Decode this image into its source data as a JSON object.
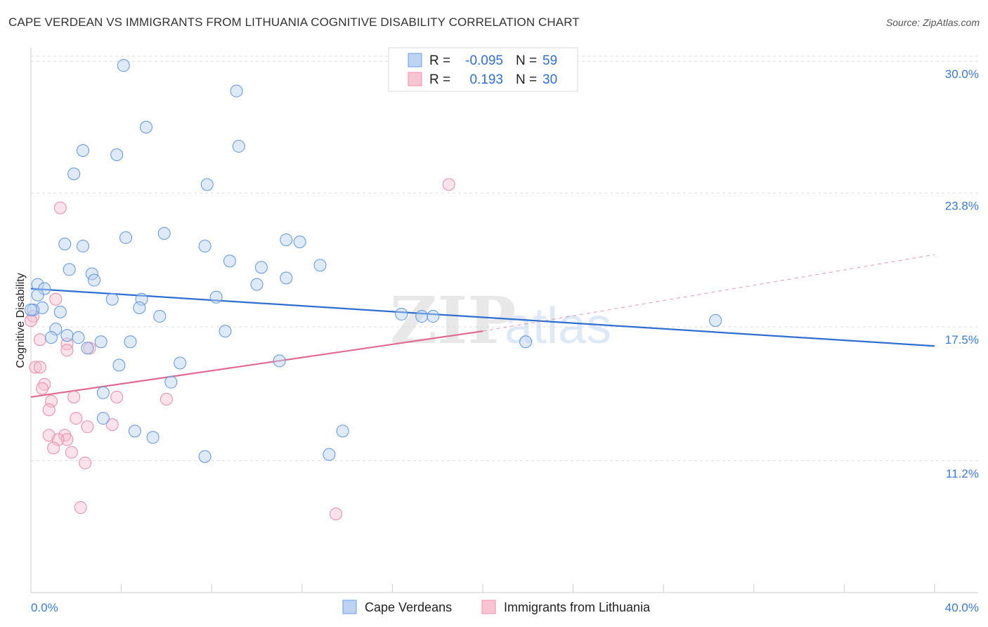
{
  "title": "CAPE VERDEAN VS IMMIGRANTS FROM LITHUANIA COGNITIVE DISABILITY CORRELATION CHART",
  "source": "Source: ZipAtlas.com",
  "watermark": {
    "zip": "ZIP",
    "atlas": "atlas"
  },
  "legend": {
    "rows": [
      {
        "r_label": "R =",
        "r_value": "-0.095",
        "n_label": "N =",
        "n_value": "59"
      },
      {
        "r_label": "R =",
        "r_value": "0.193",
        "n_label": "N =",
        "n_value": "30"
      }
    ]
  },
  "bottom_legend": [
    "Cape Verdeans",
    "Immigrants from Lithuania"
  ],
  "chart_data": {
    "type": "scatter",
    "title": "CAPE VERDEAN VS IMMIGRANTS FROM LITHUANIA COGNITIVE DISABILITY CORRELATION CHART",
    "xlabel": "",
    "ylabel": "Cognitive Disability",
    "xlim": [
      0,
      40
    ],
    "ylim": [
      5.0,
      30.5
    ],
    "x_tick_labels": [
      "0.0%",
      "40.0%"
    ],
    "y_ticks": [
      11.2,
      17.5,
      23.8,
      30.0
    ],
    "y_tick_labels": [
      "11.2%",
      "17.5%",
      "23.8%",
      "30.0%"
    ],
    "grid": true,
    "legend_position": "top-center",
    "colors": {
      "blue": "#6a9ee0",
      "pink": "#ee8fab",
      "blue_line": "#2f6fcf",
      "pink_line": "#e06a90"
    },
    "series": [
      {
        "name": "Cape Verdeans",
        "color": "blue",
        "r": -0.095,
        "n": 59,
        "trend": {
          "x": [
            0,
            40
          ],
          "y": [
            19.3,
            16.6
          ],
          "style": "solid"
        },
        "points": [
          [
            4.1,
            29.8
          ],
          [
            9.1,
            28.6
          ],
          [
            5.1,
            26.9
          ],
          [
            9.2,
            26.0
          ],
          [
            2.3,
            25.8
          ],
          [
            3.8,
            25.6
          ],
          [
            1.9,
            24.7
          ],
          [
            7.8,
            24.2
          ],
          [
            5.9,
            21.9
          ],
          [
            4.2,
            21.7
          ],
          [
            1.5,
            21.4
          ],
          [
            2.3,
            21.3
          ],
          [
            7.7,
            21.3
          ],
          [
            11.3,
            21.6
          ],
          [
            11.9,
            21.5
          ],
          [
            8.8,
            20.6
          ],
          [
            10.2,
            20.3
          ],
          [
            12.8,
            20.4
          ],
          [
            1.7,
            20.2
          ],
          [
            2.7,
            20.0
          ],
          [
            2.8,
            19.7
          ],
          [
            11.3,
            19.8
          ],
          [
            0.3,
            19.5
          ],
          [
            0.6,
            19.3
          ],
          [
            0.3,
            19.0
          ],
          [
            10.0,
            19.5
          ],
          [
            3.6,
            18.8
          ],
          [
            4.9,
            18.8
          ],
          [
            8.2,
            18.9
          ],
          [
            0.5,
            18.4
          ],
          [
            4.8,
            18.4
          ],
          [
            1.3,
            18.2
          ],
          [
            5.7,
            18.0
          ],
          [
            16.4,
            18.1
          ],
          [
            17.3,
            18.0
          ],
          [
            17.8,
            18.0
          ],
          [
            30.3,
            17.8
          ],
          [
            1.1,
            17.4
          ],
          [
            8.6,
            17.3
          ],
          [
            1.6,
            17.1
          ],
          [
            2.1,
            17.0
          ],
          [
            0.9,
            17.0
          ],
          [
            3.1,
            16.8
          ],
          [
            4.4,
            16.8
          ],
          [
            2.5,
            16.5
          ],
          [
            21.9,
            16.8
          ],
          [
            6.6,
            15.8
          ],
          [
            11.0,
            15.9
          ],
          [
            3.9,
            15.7
          ],
          [
            6.2,
            14.9
          ],
          [
            3.2,
            14.4
          ],
          [
            3.2,
            13.2
          ],
          [
            4.6,
            12.6
          ],
          [
            5.4,
            12.3
          ],
          [
            13.8,
            12.6
          ],
          [
            7.7,
            11.4
          ],
          [
            13.2,
            11.5
          ],
          [
            0.1,
            18.3
          ],
          [
            0.0,
            18.3
          ]
        ]
      },
      {
        "name": "Immigrants from Lithuania",
        "color": "pink",
        "r": 0.193,
        "n": 30,
        "trend_solid": {
          "x": [
            0,
            20
          ],
          "y": [
            14.2,
            17.3
          ]
        },
        "trend_dashed": {
          "x": [
            20,
            40
          ],
          "y": [
            17.3,
            20.9
          ]
        },
        "points": [
          [
            18.5,
            24.2
          ],
          [
            1.3,
            23.1
          ],
          [
            1.1,
            18.8
          ],
          [
            0.4,
            16.9
          ],
          [
            1.6,
            16.7
          ],
          [
            1.6,
            16.4
          ],
          [
            2.6,
            16.5
          ],
          [
            0.2,
            15.6
          ],
          [
            0.4,
            15.6
          ],
          [
            0.6,
            14.8
          ],
          [
            0.5,
            14.6
          ],
          [
            1.9,
            14.2
          ],
          [
            3.8,
            14.2
          ],
          [
            6.0,
            14.1
          ],
          [
            0.9,
            14.0
          ],
          [
            0.8,
            13.6
          ],
          [
            2.0,
            13.2
          ],
          [
            3.6,
            12.9
          ],
          [
            2.5,
            12.8
          ],
          [
            0.8,
            12.4
          ],
          [
            1.5,
            12.4
          ],
          [
            1.6,
            12.2
          ],
          [
            1.2,
            12.2
          ],
          [
            1.0,
            11.8
          ],
          [
            1.8,
            11.6
          ],
          [
            2.4,
            11.1
          ],
          [
            2.2,
            9.0
          ],
          [
            13.5,
            8.7
          ],
          [
            0.1,
            18.0
          ],
          [
            0.0,
            17.8
          ]
        ]
      }
    ]
  }
}
